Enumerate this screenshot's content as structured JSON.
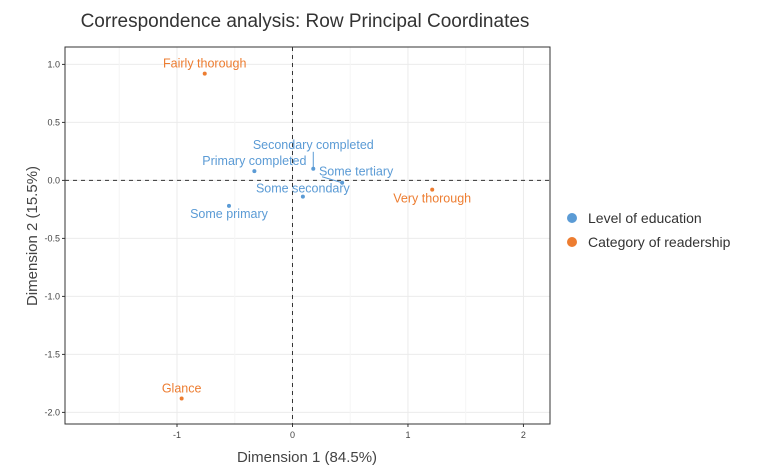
{
  "chart_data": {
    "type": "scatter",
    "title": "Correspondence analysis: Row Principal Coordinates",
    "xlabel": "Dimension 1 (84.5%)",
    "ylabel": "Dimension 2 (15.5%)",
    "xlim": [
      -1.97,
      2.23
    ],
    "ylim": [
      -2.1,
      1.15
    ],
    "xticks": [
      -1,
      0,
      1,
      2
    ],
    "xtick_labels": [
      "-1",
      "0",
      "1",
      "2"
    ],
    "yticks": [
      1.0,
      0.5,
      0.0,
      -0.5,
      -1.0,
      -1.5,
      -2.0
    ],
    "ytick_labels": [
      "1.0",
      "0.5",
      "0.0",
      "-0.5",
      "-1.0",
      "-1.5",
      "-2.0"
    ],
    "grid": true,
    "legend_position": "right",
    "series": [
      {
        "name": "Level of education",
        "color": "#5b9bd5",
        "points": [
          {
            "label": "Some primary",
            "x": -0.55,
            "y": -0.22
          },
          {
            "label": "Primary completed",
            "x": -0.33,
            "y": 0.08
          },
          {
            "label": "Some secondary",
            "x": 0.09,
            "y": -0.14
          },
          {
            "label": "Secondary completed",
            "x": 0.18,
            "y": 0.1
          },
          {
            "label": "Some tertiary",
            "x": 0.43,
            "y": -0.02
          }
        ]
      },
      {
        "name": "Category of readership",
        "color": "#ed7d31",
        "points": [
          {
            "label": "Glance",
            "x": -0.96,
            "y": -1.88
          },
          {
            "label": "Fairly thorough",
            "x": -0.76,
            "y": 0.92
          },
          {
            "label": "Very thorough",
            "x": 1.21,
            "y": -0.08
          }
        ]
      }
    ]
  }
}
